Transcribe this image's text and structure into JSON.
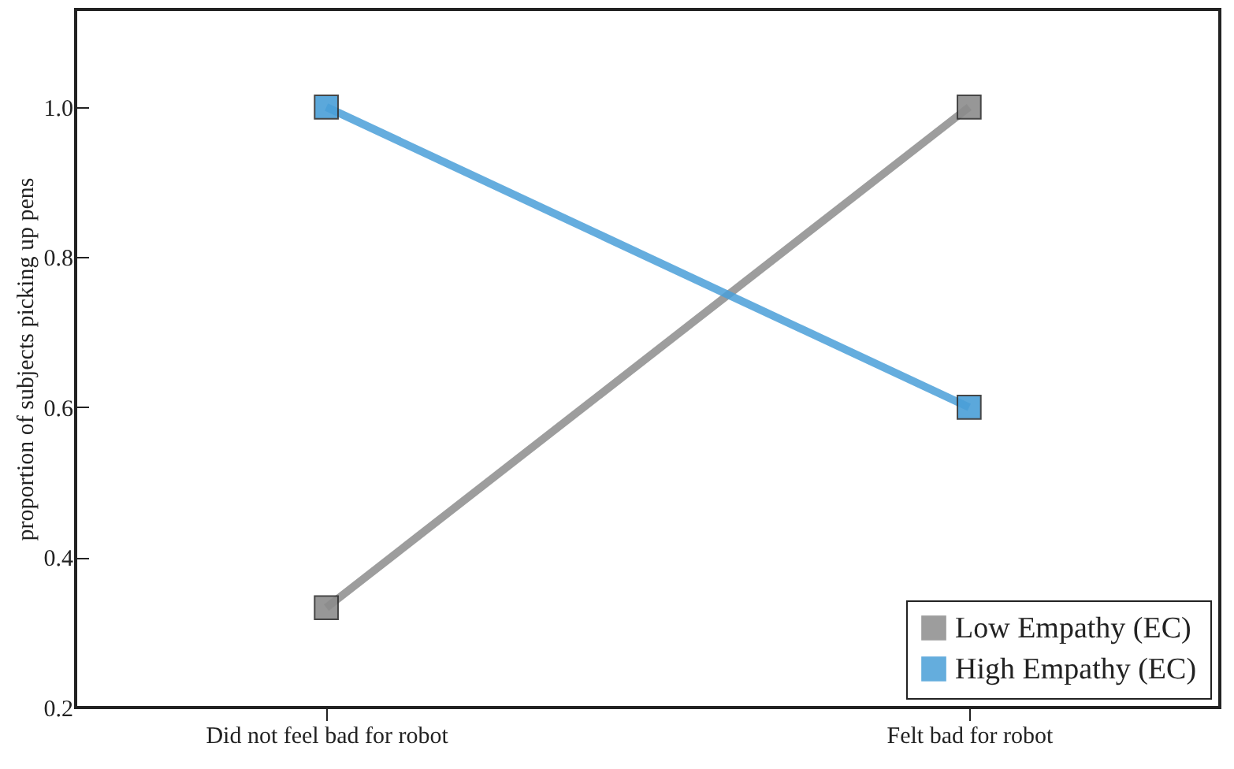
{
  "chart_data": {
    "type": "line",
    "ylabel": "proportion of subjects picking up pens",
    "categories": [
      "Did not feel bad for robot",
      "Felt bad for robot"
    ],
    "series": [
      {
        "name": "Low Empathy (EC)",
        "color": "#8c8c8c",
        "values": [
          0.333,
          1.0
        ]
      },
      {
        "name": "High Empathy (EC)",
        "color": "#4a9fd8",
        "values": [
          1.0,
          0.6
        ]
      }
    ],
    "ylim": [
      0.2,
      1.13
    ],
    "yticks": [
      {
        "value": 0.2,
        "label": "0.2"
      },
      {
        "value": 0.4,
        "label": "0.4"
      },
      {
        "value": 0.6,
        "label": "0.6"
      },
      {
        "value": 0.8,
        "label": "0.8"
      },
      {
        "value": 1.0,
        "label": "1.0"
      }
    ],
    "marker": "square",
    "legend": "bottom right",
    "grid": false
  }
}
